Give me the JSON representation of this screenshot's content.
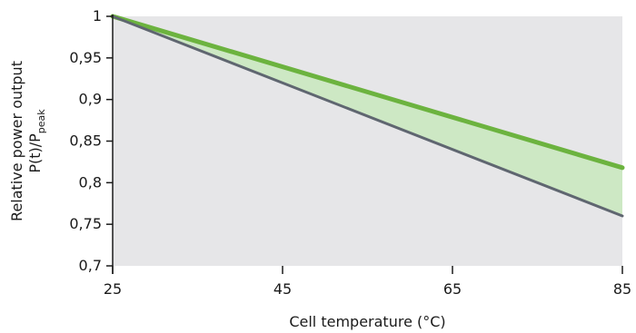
{
  "chart_data": {
    "type": "area",
    "xlabel": "Cell temperature (°C)",
    "ylabel": {
      "line1": "Relative power output",
      "line2_main": "P(t)/P",
      "line2_sub": "peak"
    },
    "xlim": [
      25,
      85
    ],
    "ylim": [
      0.7,
      1.0
    ],
    "x_ticks": [
      25,
      45,
      65,
      85
    ],
    "x_tick_labels": [
      "25",
      "45",
      "65",
      "85"
    ],
    "y_ticks": [
      0.7,
      0.75,
      0.8,
      0.85,
      0.9,
      0.95,
      1.0
    ],
    "y_tick_labels": [
      "0,7",
      "0,75",
      "0,8",
      "0,85",
      "0,9",
      "0,95",
      "1"
    ],
    "grid": false,
    "series": [
      {
        "x": [
          25,
          85
        ],
        "values": [
          1.0,
          0.818
        ],
        "color": "#6cb33f"
      },
      {
        "x": [
          25,
          85
        ],
        "values": [
          1.0,
          0.76
        ],
        "color": "#5f6670"
      }
    ],
    "band_fill_color": "#cde8c4",
    "plot_background_color": "#e6e6e8"
  }
}
